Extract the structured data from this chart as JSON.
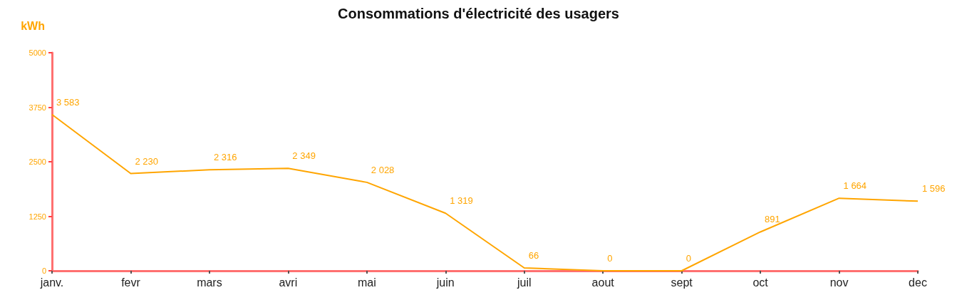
{
  "chart_data": {
    "type": "line",
    "title": "Consommations d'électricité des usagers",
    "ylabel": "kWh",
    "categories": [
      "janv.",
      "fevr",
      "mars",
      "avri",
      "mai",
      "juin",
      "juil",
      "aout",
      "sept",
      "oct",
      "nov",
      "dec"
    ],
    "series": [
      {
        "color": "#ffa500",
        "values": [
          3583,
          2230,
          2316,
          2349,
          2028,
          1319,
          66,
          0,
          0,
          891,
          1664,
          1596
        ],
        "value_labels": [
          "3 583",
          "2 230",
          "2 316",
          "2 349",
          "2 028",
          "1 319",
          "66",
          "0",
          "0",
          "891",
          "1 664",
          "1 596"
        ]
      }
    ],
    "ylim": [
      0,
      5000
    ],
    "yticks": [
      0,
      1250,
      2500,
      3750,
      5000
    ],
    "grid": false,
    "marker": "none",
    "line_style": "solid"
  }
}
